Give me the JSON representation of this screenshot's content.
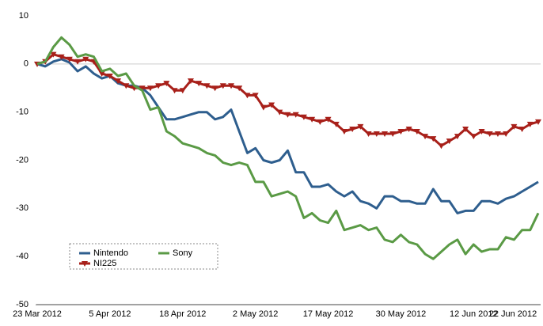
{
  "chart_data": {
    "type": "line",
    "categories": [
      "23 Mar 2012",
      null,
      null,
      null,
      null,
      null,
      null,
      null,
      null,
      "5 Apr 2012",
      null,
      null,
      null,
      null,
      null,
      null,
      null,
      null,
      "18 Apr 2012",
      null,
      null,
      null,
      null,
      null,
      null,
      null,
      null,
      "2 May 2012",
      null,
      null,
      null,
      null,
      null,
      null,
      null,
      null,
      "17 May 2012",
      null,
      null,
      null,
      null,
      null,
      null,
      null,
      null,
      "30 May 2012",
      null,
      null,
      null,
      null,
      null,
      null,
      null,
      null,
      "12 Jun 2012",
      null,
      null,
      null,
      null,
      null,
      null,
      null,
      "22 Jun 2012"
    ],
    "series": [
      {
        "name": "Nintendo",
        "color": "#2e5e8e",
        "marker": false,
        "values": [
          0,
          -0.5,
          0.5,
          1,
          0.3,
          -1.5,
          -0.5,
          -2,
          -3,
          -2.5,
          -4,
          -4.5,
          -4.5,
          -5,
          -6.5,
          -9,
          -11.5,
          -11.5,
          -11,
          -10.5,
          -10,
          -10,
          -11.5,
          -11,
          -9.5,
          -14,
          -18.5,
          -17.5,
          -20,
          -20.5,
          -20,
          -18,
          -22.5,
          -22.5,
          -25.5,
          -25.5,
          -25,
          -26.5,
          -27.5,
          -26.5,
          -28.5,
          -29,
          -30,
          -27.5,
          -27.5,
          -28.5,
          -28.5,
          -29,
          -29,
          -26,
          -28.5,
          -28.5,
          -31,
          -30.5,
          -30.5,
          -28.5,
          -28.5,
          -29,
          -28,
          -27.5,
          -26.5,
          -25.5,
          -24.5
        ]
      },
      {
        "name": "NI225",
        "color": "#a8201a",
        "marker": true,
        "values": [
          0,
          0.5,
          2,
          1.5,
          1,
          0.5,
          1,
          0.5,
          -2,
          -2.5,
          -3.5,
          -4.5,
          -5,
          -5,
          -5,
          -4.5,
          -4,
          -5.5,
          -5.5,
          -3.5,
          -4,
          -4.5,
          -5,
          -4.5,
          -4.5,
          -5,
          -6.5,
          -6.5,
          -9,
          -8.5,
          -10,
          -10.5,
          -10.5,
          -11,
          -11.5,
          -12,
          -11.5,
          -12.5,
          -14,
          -13.5,
          -13,
          -14.5,
          -14.5,
          -14.5,
          -14.5,
          -14,
          -13.5,
          -14,
          -15,
          -15.5,
          -17,
          -16,
          -15,
          -13.5,
          -15,
          -14,
          -14.5,
          -14.5,
          -14.5,
          -13,
          -13.5,
          -12.5,
          -12
        ]
      },
      {
        "name": "Sony",
        "color": "#5a9a45",
        "marker": false,
        "values": [
          0,
          0.5,
          3.5,
          5.5,
          4,
          1.5,
          2,
          1.5,
          -1.5,
          -1,
          -2.5,
          -2,
          -4.5,
          -5.5,
          -9.5,
          -9,
          -14,
          -15,
          -16.5,
          -17,
          -17.5,
          -18.5,
          -19,
          -20.5,
          -21,
          -20.5,
          -21,
          -24.5,
          -24.5,
          -27.5,
          -27,
          -26.5,
          -27.5,
          -32,
          -31,
          -32.5,
          -33,
          -30.5,
          -34.5,
          -34,
          -33.5,
          -34.5,
          -34,
          -36.5,
          -37,
          -35.5,
          -37,
          -37.5,
          -39.5,
          -40.5,
          -39,
          -37.5,
          -36.5,
          -39.5,
          -37.5,
          -39,
          -38.5,
          -38.5,
          -36,
          -36.5,
          -34.5,
          -34.5,
          -31
        ]
      }
    ],
    "ylim": [
      -50,
      10
    ],
    "yticks": [
      10,
      0,
      -10,
      -20,
      -30,
      -40,
      -50
    ],
    "grid": false
  }
}
